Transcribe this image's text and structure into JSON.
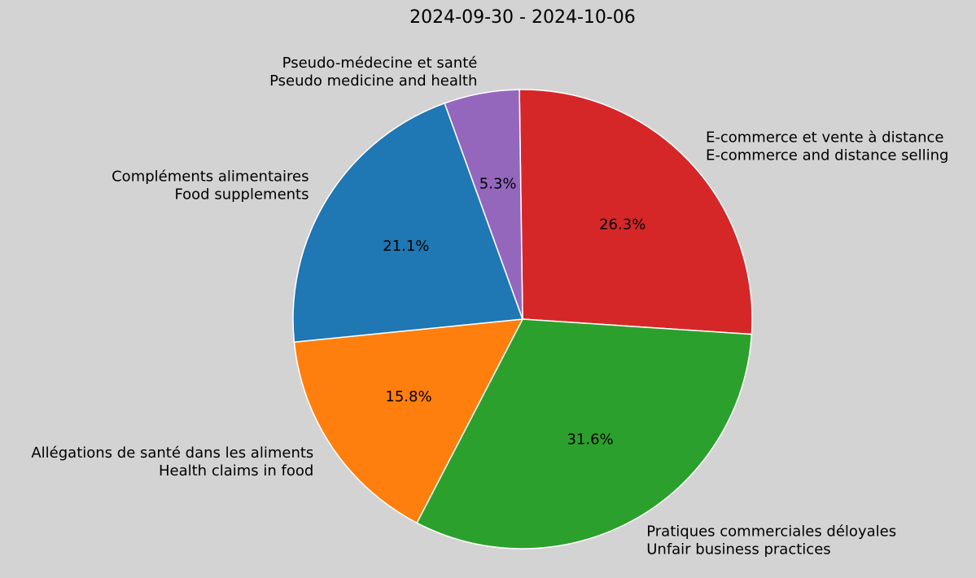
{
  "chart_data": {
    "type": "pie",
    "title": "2024-09-30 - 2024-10-06",
    "slices": [
      {
        "label_fr": "E-commerce et vente à distance",
        "label_en": "E-commerce and distance selling",
        "value": 26.3,
        "pct_label": "26.3%",
        "color": "#d62728"
      },
      {
        "label_fr": "Pratiques commerciales déloyales",
        "label_en": "Unfair business practices",
        "value": 31.6,
        "pct_label": "31.6%",
        "color": "#2ca02c"
      },
      {
        "label_fr": "Allégations de santé dans les aliments",
        "label_en": "Health claims in food",
        "value": 15.8,
        "pct_label": "15.8%",
        "color": "#ff7f0e"
      },
      {
        "label_fr": "Compléments alimentaires",
        "label_en": "Food supplements",
        "value": 21.1,
        "pct_label": "21.1%",
        "color": "#1f77b4"
      },
      {
        "label_fr": "Pseudo-médecine et santé",
        "label_en": "Pseudo medicine and health",
        "value": 5.3,
        "pct_label": "5.3%",
        "color": "#9467bd"
      }
    ]
  }
}
